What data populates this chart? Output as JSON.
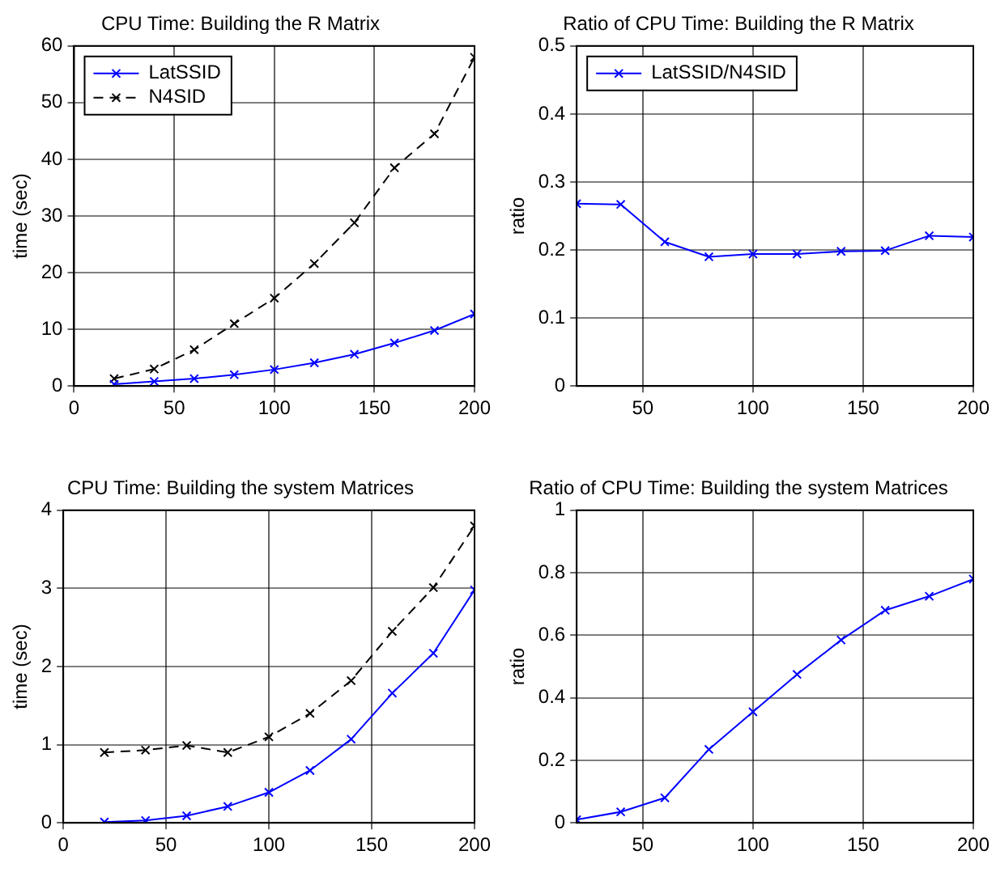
{
  "chart_data": [
    {
      "type": "line",
      "title": "CPU Time: Building the R Matrix",
      "ylabel": "time (sec)",
      "x": [
        20,
        40,
        60,
        80,
        100,
        120,
        140,
        160,
        180,
        200
      ],
      "xlim": [
        0,
        200
      ],
      "xticks": [
        0,
        50,
        100,
        150,
        200
      ],
      "ylim": [
        0,
        60
      ],
      "yticks": [
        0,
        10,
        20,
        30,
        40,
        50,
        60
      ],
      "grid": true,
      "legend": "top left",
      "series": [
        {
          "name": "LatSSID",
          "color": "#0000ff",
          "marker": "cross",
          "line_style": "solid",
          "values": [
            0.3,
            0.8,
            1.3,
            2.0,
            2.9,
            4.1,
            5.6,
            7.6,
            9.8,
            12.7
          ]
        },
        {
          "name": "N4SID",
          "color": "#000000",
          "marker": "cross",
          "line_style": "dashed",
          "values": [
            1.3,
            3.0,
            6.4,
            11.0,
            15.5,
            21.6,
            28.8,
            38.5,
            44.5,
            58
          ]
        }
      ]
    },
    {
      "type": "line",
      "title": "Ratio of CPU Time: Building the R Matrix",
      "ylabel": "ratio",
      "x": [
        20,
        40,
        60,
        80,
        100,
        120,
        140,
        160,
        180,
        200
      ],
      "xlim": [
        20,
        200
      ],
      "xticks": [
        50,
        100,
        150,
        200
      ],
      "ylim": [
        0,
        0.5
      ],
      "yticks": [
        0,
        0.1,
        0.2,
        0.3,
        0.4,
        0.5
      ],
      "grid": true,
      "legend": "top left",
      "series": [
        {
          "name": "LatSSID/N4SID",
          "color": "#0000ff",
          "marker": "cross",
          "line_style": "solid",
          "values": [
            0.268,
            0.267,
            0.212,
            0.19,
            0.194,
            0.194,
            0.198,
            0.199,
            0.221,
            0.219
          ]
        }
      ]
    },
    {
      "type": "line",
      "title": "CPU Time: Building the system Matrices",
      "ylabel": "time (sec)",
      "x": [
        20,
        40,
        60,
        80,
        100,
        120,
        140,
        160,
        180,
        200
      ],
      "xlim": [
        0,
        200
      ],
      "xticks": [
        0,
        50,
        100,
        150,
        200
      ],
      "ylim": [
        0,
        4
      ],
      "yticks": [
        0,
        1,
        2,
        3,
        4
      ],
      "grid": true,
      "series": [
        {
          "color": "#0000ff",
          "marker": "cross",
          "line_style": "solid",
          "values": [
            0.01,
            0.03,
            0.09,
            0.21,
            0.39,
            0.67,
            1.07,
            1.66,
            2.17,
            2.98
          ]
        },
        {
          "color": "#000000",
          "marker": "cross",
          "line_style": "dashed",
          "values": [
            0.9,
            0.93,
            0.99,
            0.9,
            1.1,
            1.4,
            1.82,
            2.45,
            3.01,
            3.8
          ]
        }
      ]
    },
    {
      "type": "line",
      "title": "Ratio of CPU Time: Building the system Matrices",
      "ylabel": "ratio",
      "x": [
        20,
        40,
        60,
        80,
        100,
        120,
        140,
        160,
        180,
        200
      ],
      "xlim": [
        20,
        200
      ],
      "xticks": [
        50,
        100,
        150,
        200
      ],
      "ylim": [
        0,
        1
      ],
      "yticks": [
        0,
        0.2,
        0.4,
        0.6,
        0.8,
        1
      ],
      "grid": true,
      "series": [
        {
          "color": "#0000ff",
          "marker": "cross",
          "line_style": "solid",
          "values": [
            0.01,
            0.035,
            0.08,
            0.235,
            0.355,
            0.475,
            0.585,
            0.68,
            0.725,
            0.78
          ]
        }
      ]
    }
  ]
}
